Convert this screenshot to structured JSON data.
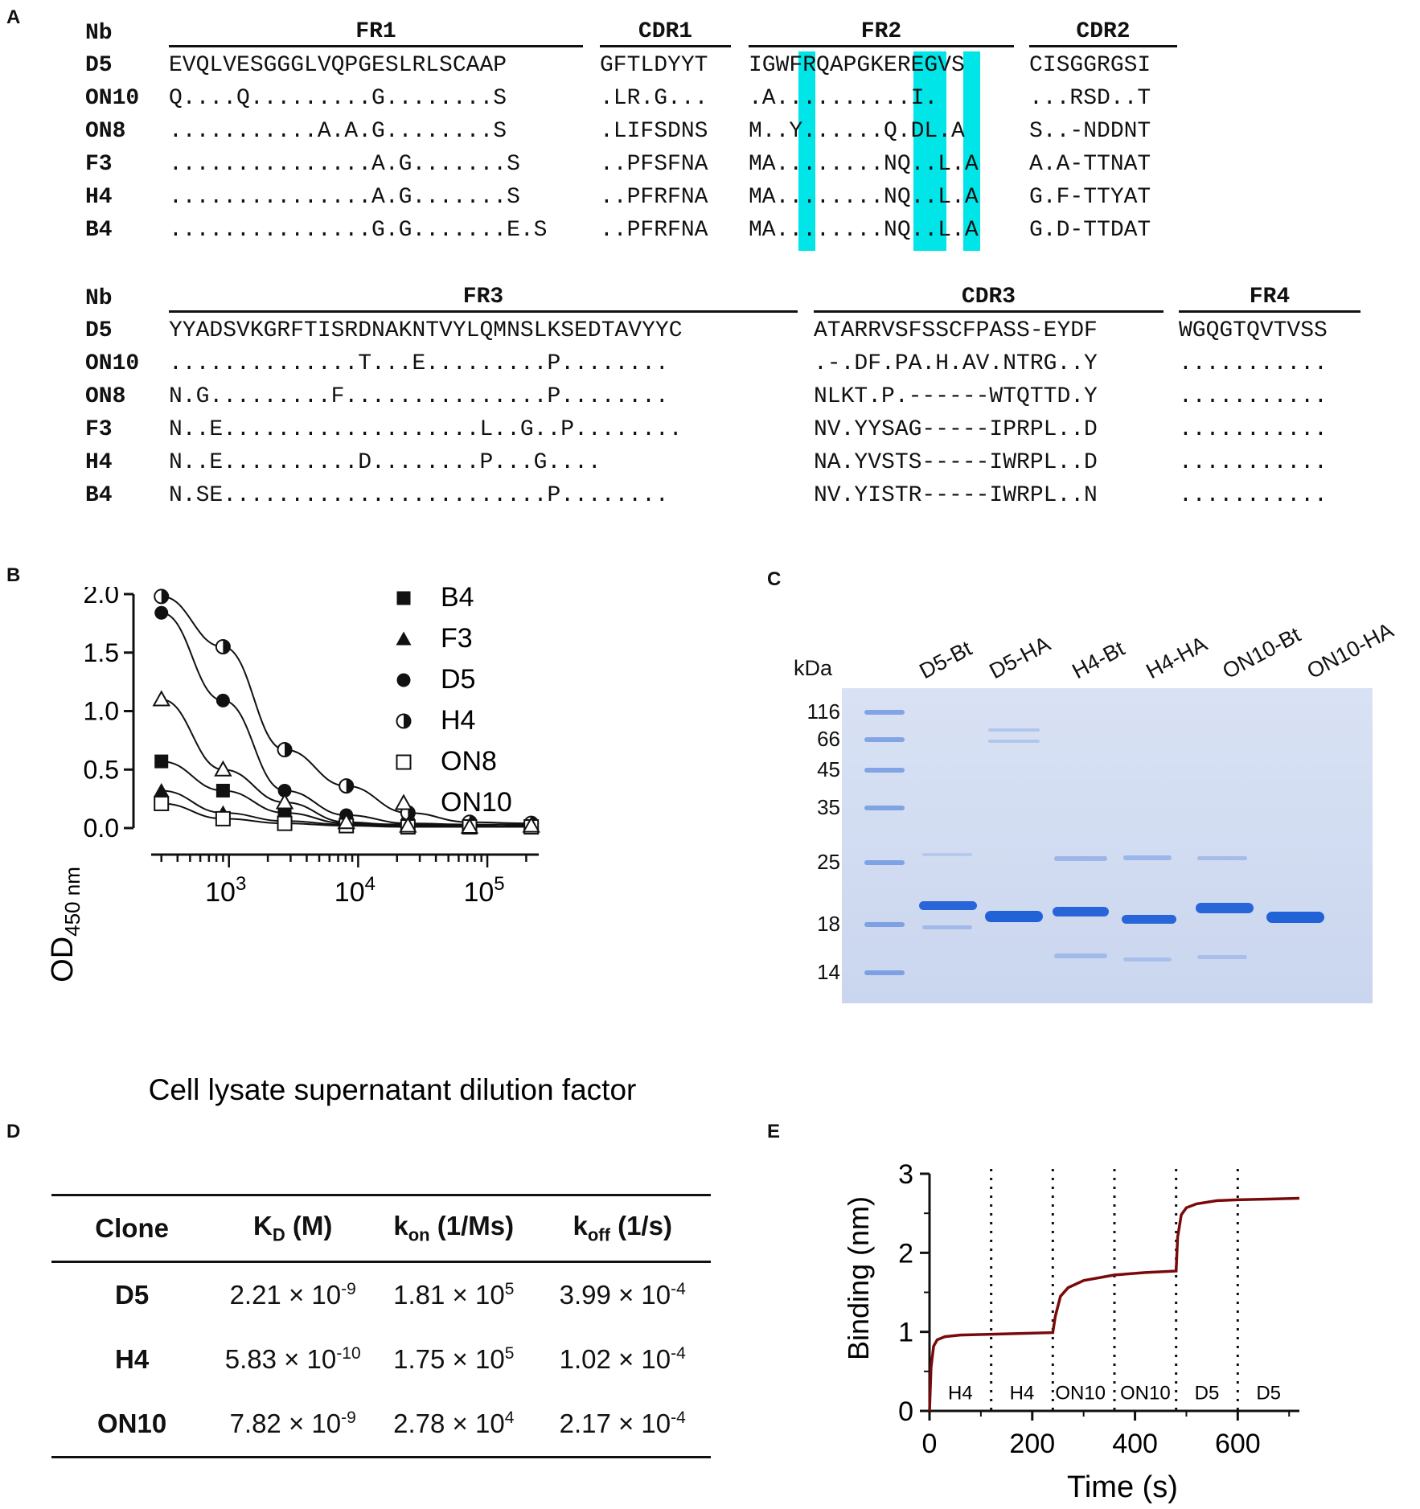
{
  "panels": {
    "a": "A",
    "b": "B",
    "c": "C",
    "d": "D",
    "e": "E"
  },
  "alignment": {
    "header_label": "Nb",
    "top_regions": [
      "FR1",
      "CDR1",
      "FR2",
      "CDR2"
    ],
    "bottom_regions": [
      "FR3",
      "CDR3",
      "FR4"
    ],
    "rows": [
      {
        "name": "D5",
        "fr1": "EVQLVESGGGLVQPGESLRLSCAAP",
        "cdr1": "GFTLDYYT",
        "fr2": "IGWFRQAPGKEREGVS",
        "cdr2": "CISGGRGSI",
        "fr3": "YYADSVKGRFTISRDNAKNTVYLQMNSLKSEDTAVYYC",
        "cdr3": "ATARRVSFSSCFPASS-EYDF",
        "fr4": "WGQGTQVTVSS"
      },
      {
        "name": "ON10",
        "fr1": "Q....Q.........G........S",
        "cdr1": ".LR.G...",
        "fr2": ".A..........I.",
        "cdr2": "...RSD..T",
        "fr3": "..............T...E.........P........",
        "cdr3": ".-.DF.PA.H.AV.NTRG..Y",
        "fr4": "..........."
      },
      {
        "name": "ON8",
        "fr1": "...........A.A.G........S",
        "cdr1": ".LIFSDNS",
        "fr2": "M..Y......Q.DL.A",
        "cdr2": "S..-NDDNT",
        "fr3": "N.G.........F...............P........",
        "cdr3": "NLKT.P.------WTQTTD.Y",
        "fr4": "..........."
      },
      {
        "name": "F3",
        "fr1": "...............A.G.......S",
        "cdr1": "..PFSFNA",
        "fr2": "MA........NQ..L.A",
        "cdr2": "A.A-TTNAT",
        "fr3": "N..E...................L..G..P........",
        "cdr3": "NV.YYSAG-----IPRPL..D",
        "fr4": "..........."
      },
      {
        "name": "H4",
        "fr1": "...............A.G.......S",
        "cdr1": "..PFRFNA",
        "fr2": "MA........NQ..L.A",
        "cdr2": "G.F-TTYAT",
        "fr3": "N..E..........D........P...G....",
        "cdr3": "NA.YVSTS-----IWRPL..D",
        "fr4": "..........."
      },
      {
        "name": "B4",
        "fr1": "...............G.G.......E.S",
        "cdr1": "..PFRFNA",
        "fr2": "MA........NQ..L.A",
        "cdr2": "G.D-TTDAT",
        "fr3": "N.SE........................P........",
        "cdr3": "NV.YISTR-----IWRPL..N",
        "fr4": "..........."
      }
    ]
  },
  "chart_data": [
    {
      "type": "scatter",
      "title": "",
      "xlabel": "Cell lysate supernatant dilution factor",
      "ylabel": "OD450 nm",
      "ylabel_main": "OD",
      "ylabel_sub": "450 nm",
      "x_scale": "log",
      "xlim": [
        250,
        250000
      ],
      "ylim": [
        0,
        2.0
      ],
      "x_ticks": [
        "10",
        "10",
        "10"
      ],
      "x_tick_exps": [
        "3",
        "4",
        "5"
      ],
      "y_ticks": [
        "0.0",
        "0.5",
        "1.0",
        "1.5",
        "2.0"
      ],
      "x": [
        300,
        900,
        2700,
        8100,
        24300,
        72900,
        218700
      ],
      "series": [
        {
          "name": "B4",
          "marker": "filled-square",
          "values": [
            0.57,
            0.32,
            0.13,
            0.04,
            0.03,
            0.02,
            0.01
          ]
        },
        {
          "name": "F3",
          "marker": "filled-triangle",
          "values": [
            0.32,
            0.13,
            0.06,
            0.03,
            0.02,
            0.02,
            0.01
          ]
        },
        {
          "name": "D5",
          "marker": "filled-circle",
          "values": [
            1.84,
            1.09,
            0.32,
            0.11,
            0.04,
            0.03,
            0.03
          ]
        },
        {
          "name": "H4",
          "marker": "half-circle",
          "values": [
            1.98,
            1.55,
            0.67,
            0.36,
            0.13,
            0.05,
            0.04
          ]
        },
        {
          "name": "ON8",
          "marker": "open-square",
          "values": [
            0.21,
            0.08,
            0.04,
            0.02,
            0.01,
            0.01,
            0.01
          ]
        },
        {
          "name": "ON10",
          "marker": "open-triangle",
          "values": [
            1.1,
            0.5,
            0.22,
            0.05,
            0.02,
            0.01,
            0.02
          ]
        }
      ]
    },
    {
      "type": "line",
      "title": "",
      "xlabel": "Time (s)",
      "ylabel": "Binding (nm)",
      "xlim": [
        0,
        720
      ],
      "ylim": [
        0,
        3
      ],
      "x_ticks": [
        "0",
        "200",
        "400",
        "600"
      ],
      "y_ticks": [
        "0",
        "1",
        "2",
        "3"
      ],
      "phase_boundaries": [
        120,
        240,
        360,
        480,
        600
      ],
      "phase_labels": [
        "H4",
        "H4",
        "ON10",
        "ON10",
        "D5",
        "D5"
      ],
      "series": [
        {
          "name": "Binding",
          "color": "#7a0a0a",
          "x": [
            0,
            3,
            8,
            15,
            30,
            60,
            120,
            180,
            240,
            245,
            255,
            270,
            300,
            360,
            420,
            480,
            483,
            490,
            500,
            520,
            560,
            600,
            660,
            720
          ],
          "values": [
            0,
            0.55,
            0.82,
            0.9,
            0.94,
            0.96,
            0.97,
            0.98,
            0.99,
            1.2,
            1.45,
            1.56,
            1.65,
            1.72,
            1.75,
            1.77,
            2.2,
            2.48,
            2.57,
            2.62,
            2.66,
            2.67,
            2.68,
            2.69
          ]
        }
      ]
    }
  ],
  "gel": {
    "unit_label": "kDa",
    "markers": [
      "116",
      "66",
      "45",
      "35",
      "25",
      "18",
      "14"
    ],
    "lanes": [
      "D5-Bt",
      "D5-HA",
      "H4-Bt",
      "H4-HA",
      "ON10-Bt",
      "ON10-HA"
    ]
  },
  "kinetics": {
    "headers": {
      "clone": "Clone",
      "kd_main": "K",
      "kd_sub": "D",
      "kd_unit": " (M)",
      "kon_main": "k",
      "kon_sub": "on",
      "kon_unit": " (1/Ms)",
      "koff_main": "k",
      "koff_sub": "off",
      "koff_unit": " (1/s)"
    },
    "rows": [
      {
        "clone": "D5",
        "kd_m": "2.21 × 10",
        "kd_e": "-9",
        "kon_m": "1.81 × 10",
        "kon_e": "5",
        "koff_m": "3.99 × 10",
        "koff_e": "-4"
      },
      {
        "clone": "H4",
        "kd_m": "5.83 × 10",
        "kd_e": "-10",
        "kon_m": "1.75 × 10",
        "kon_e": "5",
        "koff_m": "1.02 × 10",
        "koff_e": "-4"
      },
      {
        "clone": "ON10",
        "kd_m": "7.82 × 10",
        "kd_e": "-9",
        "kon_m": "2.78 × 10",
        "kon_e": "4",
        "koff_m": "2.17 × 10",
        "koff_e": "-4"
      }
    ]
  }
}
